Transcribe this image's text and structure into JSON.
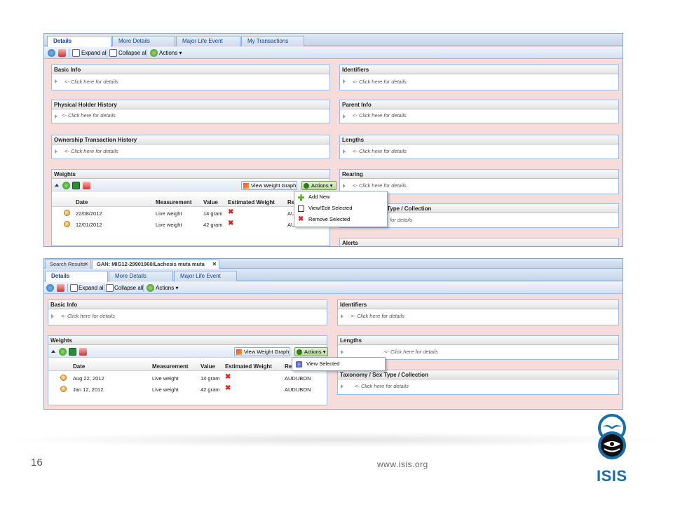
{
  "shot1": {
    "tabs": [
      "Details",
      "More Details",
      "Major Life Event",
      "My Transactions"
    ],
    "toolbar": {
      "expand": "Expand all",
      "collapse": "Collapse all",
      "actions": "Actions"
    },
    "left_panels": [
      {
        "title": "Basic Info",
        "hint": "<- Click here for details"
      },
      {
        "title": "Physical Holder History",
        "hint": "<- Click here for details"
      },
      {
        "title": "Ownership Transaction History",
        "hint": "<- Click here for details"
      }
    ],
    "right_panels": [
      {
        "title": "Identifiers",
        "hint": "<- Click here for details"
      },
      {
        "title": "Parent Info",
        "hint": "<- Click here for details"
      },
      {
        "title": "Lengths",
        "hint": "<- Click here for details"
      },
      {
        "title": "Rearing",
        "hint": "<- Click here for details"
      },
      {
        "title": "Type / Collection",
        "hint": "for details"
      },
      {
        "title": "Alerts",
        "hint": ""
      }
    ],
    "weights": {
      "title": "Weights",
      "graph_button": "View Weight Graph",
      "actions_button": "Actions",
      "columns": [
        "Date",
        "Measurement",
        "Value",
        "Estimated Weight",
        "Re"
      ],
      "rows": [
        {
          "date": "22/08/2012",
          "measurement": "Live weight",
          "value": "14 gram",
          "reported": "AUD"
        },
        {
          "date": "12/01/2012",
          "measurement": "Live weight",
          "value": "42 gram",
          "reported": "AUD"
        }
      ]
    },
    "menu": [
      "Add New",
      "View/Edit Selected",
      "Remove Selected"
    ]
  },
  "shot2": {
    "group_tabs": [
      "Search Results",
      "GAN: MIG12-29901960/Lachesis muta muta"
    ],
    "tabs": [
      "Details",
      "More Details",
      "Major Life Event"
    ],
    "toolbar": {
      "expand": "Expand all",
      "collapse": "Collapse all",
      "actions": "Actions"
    },
    "left_panels": [
      {
        "title": "Basic Info",
        "hint": "<- Click here for details"
      }
    ],
    "right_panels": [
      {
        "title": "Identifiers",
        "hint": "<- Click here for details"
      },
      {
        "title": "Lengths",
        "hint": "<- Click here for details"
      },
      {
        "title": "Taxonomy / Sex Type / Collection",
        "hint": "<- Click here for details"
      }
    ],
    "weights": {
      "title": "Weights",
      "graph_button": "View Weight Graph",
      "actions_button": "Actions",
      "columns": [
        "Date",
        "Measurement",
        "Value",
        "Estimated Weight",
        "Reported by"
      ],
      "rows": [
        {
          "date": "Aug 22, 2012",
          "measurement": "Live weight",
          "value": "14 gram",
          "reported": "AUDUBON"
        },
        {
          "date": "Jan 12, 2012",
          "measurement": "Live weight",
          "value": "42 gram",
          "reported": "AUDUBON"
        }
      ]
    },
    "menu": [
      "View Selected"
    ]
  },
  "footer": {
    "page_number": "16",
    "url": "www.isis.org",
    "logo_text": "ISIS"
  },
  "icons": {
    "refresh": "refresh-icon",
    "pin": "pin-icon",
    "expand": "expand-icon",
    "collapse": "collapse-icon",
    "actions": "play-circle-icon",
    "add": "plus-icon",
    "edit": "edit-icon",
    "remove": "red-x-icon",
    "view": "binoculars-icon",
    "graph": "chart-icon",
    "excel": "excel-icon",
    "row": "animal-face-icon"
  },
  "colors": {
    "accent": "#15428b",
    "bg_pink": "#f7dcdc",
    "logo_blue": "#1a6ea8",
    "delete_red": "#dd2222"
  }
}
